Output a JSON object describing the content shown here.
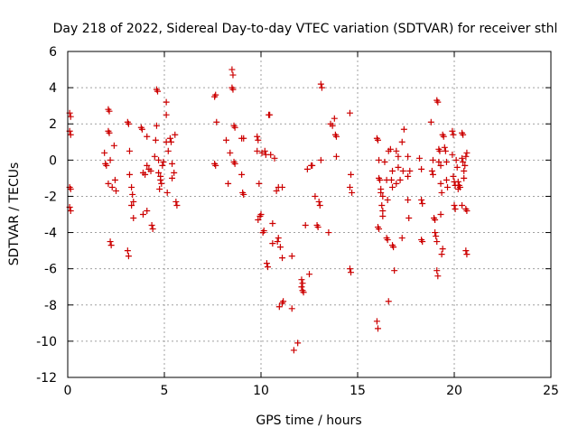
{
  "chart_data": {
    "type": "scatter",
    "title": "Day 218 of 2022, Sidereal Day-to-day VTEC variation (SDTVAR) for receiver sthl",
    "xlabel": "GPS time / hours",
    "ylabel": "SDTVAR / TECUs",
    "xlim": [
      0,
      25
    ],
    "ylim": [
      -12,
      6
    ],
    "x_ticks": [
      0,
      5,
      10,
      15,
      20,
      25
    ],
    "y_ticks": [
      -12,
      -10,
      -8,
      -6,
      -4,
      -2,
      0,
      2,
      4,
      6
    ],
    "x_tick_labels": [
      "0",
      "5",
      "10",
      "15",
      "20",
      "25"
    ],
    "y_tick_labels": [
      "-12",
      "-10",
      "-8",
      "-6",
      "-4",
      "-2",
      "0",
      "2",
      "4",
      "6"
    ],
    "grid": true,
    "marker": "+",
    "series": [
      {
        "name": "sthl",
        "color": "#cc0000",
        "points": [
          [
            0.1,
            2.6
          ],
          [
            0.15,
            2.4
          ],
          [
            0.1,
            1.6
          ],
          [
            0.15,
            1.4
          ],
          [
            0.1,
            -1.5
          ],
          [
            0.15,
            -1.6
          ],
          [
            0.1,
            -2.6
          ],
          [
            0.15,
            -2.8
          ],
          [
            1.9,
            0.4
          ],
          [
            1.95,
            -0.2
          ],
          [
            2.0,
            -0.3
          ],
          [
            2.1,
            2.8
          ],
          [
            2.15,
            2.7
          ],
          [
            2.1,
            1.6
          ],
          [
            2.15,
            1.5
          ],
          [
            2.2,
            0.0
          ],
          [
            2.1,
            -1.3
          ],
          [
            2.3,
            -1.5
          ],
          [
            2.2,
            -4.5
          ],
          [
            2.25,
            -4.7
          ],
          [
            2.4,
            0.8
          ],
          [
            2.45,
            -1.1
          ],
          [
            2.5,
            -1.7
          ],
          [
            3.1,
            2.1
          ],
          [
            3.15,
            2.0
          ],
          [
            3.2,
            0.5
          ],
          [
            3.2,
            -0.8
          ],
          [
            3.3,
            -1.5
          ],
          [
            3.35,
            -1.9
          ],
          [
            3.4,
            -2.3
          ],
          [
            3.3,
            -2.5
          ],
          [
            3.4,
            -3.2
          ],
          [
            3.1,
            -5.0
          ],
          [
            3.15,
            -5.3
          ],
          [
            3.8,
            1.8
          ],
          [
            3.85,
            1.7
          ],
          [
            3.9,
            -0.7
          ],
          [
            4.0,
            -0.8
          ],
          [
            4.1,
            1.3
          ],
          [
            4.1,
            -0.3
          ],
          [
            4.2,
            -0.5
          ],
          [
            4.1,
            -2.8
          ],
          [
            3.9,
            -3.0
          ],
          [
            4.3,
            -0.6
          ],
          [
            4.35,
            -3.6
          ],
          [
            4.4,
            -3.8
          ],
          [
            4.5,
            0.2
          ],
          [
            4.55,
            1.1
          ],
          [
            4.6,
            3.9
          ],
          [
            4.65,
            3.8
          ],
          [
            4.6,
            1.9
          ],
          [
            4.7,
            0.0
          ],
          [
            4.7,
            -0.7
          ],
          [
            4.8,
            -0.9
          ],
          [
            4.8,
            -1.1
          ],
          [
            4.85,
            -1.3
          ],
          [
            4.75,
            -1.6
          ],
          [
            4.9,
            -0.3
          ],
          [
            4.95,
            -0.1
          ],
          [
            5.1,
            3.2
          ],
          [
            5.1,
            2.5
          ],
          [
            5.1,
            1.0
          ],
          [
            5.15,
            -1.8
          ],
          [
            5.2,
            0.5
          ],
          [
            5.3,
            1.2
          ],
          [
            5.35,
            1.0
          ],
          [
            5.4,
            -0.2
          ],
          [
            5.4,
            -1.0
          ],
          [
            5.5,
            -0.7
          ],
          [
            5.55,
            1.4
          ],
          [
            5.6,
            -2.3
          ],
          [
            5.65,
            -2.5
          ],
          [
            7.6,
            3.5
          ],
          [
            7.65,
            3.6
          ],
          [
            7.7,
            2.1
          ],
          [
            7.6,
            -0.2
          ],
          [
            7.65,
            -0.3
          ],
          [
            8.2,
            1.1
          ],
          [
            8.3,
            -1.3
          ],
          [
            8.4,
            0.4
          ],
          [
            8.5,
            5.0
          ],
          [
            8.55,
            4.7
          ],
          [
            8.5,
            4.0
          ],
          [
            8.55,
            3.9
          ],
          [
            8.6,
            1.9
          ],
          [
            8.65,
            1.8
          ],
          [
            8.6,
            -0.1
          ],
          [
            8.65,
            -0.2
          ],
          [
            9.0,
            1.2
          ],
          [
            9.1,
            1.2
          ],
          [
            9.0,
            -0.8
          ],
          [
            9.05,
            -1.8
          ],
          [
            9.1,
            -1.9
          ],
          [
            9.8,
            1.3
          ],
          [
            9.85,
            1.1
          ],
          [
            9.8,
            0.5
          ],
          [
            9.9,
            -1.3
          ],
          [
            9.85,
            -3.3
          ],
          [
            9.95,
            -3.1
          ],
          [
            10.0,
            -3.0
          ],
          [
            10.05,
            0.4
          ],
          [
            10.1,
            -4.0
          ],
          [
            10.15,
            -3.9
          ],
          [
            10.2,
            0.5
          ],
          [
            10.25,
            0.3
          ],
          [
            10.4,
            2.5
          ],
          [
            10.45,
            2.5
          ],
          [
            10.3,
            -5.7
          ],
          [
            10.35,
            -5.9
          ],
          [
            10.5,
            0.3
          ],
          [
            10.6,
            -3.5
          ],
          [
            10.6,
            -4.6
          ],
          [
            10.7,
            0.1
          ],
          [
            10.8,
            -1.7
          ],
          [
            10.9,
            -1.5
          ],
          [
            10.85,
            -4.5
          ],
          [
            10.9,
            -4.3
          ],
          [
            10.95,
            -8.1
          ],
          [
            11.0,
            -4.8
          ],
          [
            11.1,
            -5.4
          ],
          [
            11.1,
            -7.9
          ],
          [
            11.15,
            -7.8
          ],
          [
            11.1,
            -1.5
          ],
          [
            11.6,
            -5.3
          ],
          [
            11.6,
            -8.2
          ],
          [
            11.7,
            -10.5
          ],
          [
            11.9,
            -10.1
          ],
          [
            12.1,
            -6.6
          ],
          [
            12.15,
            -6.8
          ],
          [
            12.1,
            -7.0
          ],
          [
            12.15,
            -7.2
          ],
          [
            12.2,
            -7.3
          ],
          [
            12.3,
            -3.6
          ],
          [
            12.4,
            -0.5
          ],
          [
            12.5,
            -6.3
          ],
          [
            12.6,
            -0.3
          ],
          [
            12.65,
            -0.3
          ],
          [
            12.8,
            -2.0
          ],
          [
            12.9,
            -3.6
          ],
          [
            12.95,
            -3.7
          ],
          [
            13.0,
            -2.3
          ],
          [
            13.05,
            -2.5
          ],
          [
            13.1,
            0.0
          ],
          [
            13.1,
            4.2
          ],
          [
            13.15,
            4.0
          ],
          [
            13.5,
            -4.0
          ],
          [
            13.6,
            2.0
          ],
          [
            13.7,
            1.9
          ],
          [
            13.8,
            2.3
          ],
          [
            13.85,
            1.4
          ],
          [
            13.9,
            1.3
          ],
          [
            13.9,
            0.2
          ],
          [
            14.6,
            2.6
          ],
          [
            14.65,
            -0.8
          ],
          [
            14.6,
            -1.5
          ],
          [
            14.7,
            -1.8
          ],
          [
            14.6,
            -6.0
          ],
          [
            14.65,
            -6.2
          ],
          [
            16.0,
            1.2
          ],
          [
            16.05,
            1.1
          ],
          [
            16.1,
            0.0
          ],
          [
            16.1,
            -1.0
          ],
          [
            16.15,
            -1.1
          ],
          [
            16.2,
            -1.6
          ],
          [
            16.2,
            -1.8
          ],
          [
            16.3,
            -2.0
          ],
          [
            16.25,
            -2.5
          ],
          [
            16.3,
            -2.8
          ],
          [
            16.3,
            -3.1
          ],
          [
            16.1,
            -3.8
          ],
          [
            16.05,
            -3.7
          ],
          [
            16.0,
            -8.9
          ],
          [
            16.05,
            -9.3
          ],
          [
            16.4,
            -0.1
          ],
          [
            16.5,
            -1.1
          ],
          [
            16.55,
            -2.2
          ],
          [
            16.6,
            0.5
          ],
          [
            16.5,
            -4.3
          ],
          [
            16.55,
            -4.4
          ],
          [
            16.6,
            -7.8
          ],
          [
            16.7,
            0.6
          ],
          [
            16.8,
            -0.6
          ],
          [
            16.75,
            -1.1
          ],
          [
            16.8,
            -1.5
          ],
          [
            16.8,
            -4.7
          ],
          [
            16.85,
            -4.8
          ],
          [
            16.9,
            -6.1
          ],
          [
            17.0,
            0.5
          ],
          [
            17.1,
            0.2
          ],
          [
            17.1,
            -0.4
          ],
          [
            17.0,
            -1.3
          ],
          [
            17.2,
            -1.1
          ],
          [
            17.3,
            1.0
          ],
          [
            17.35,
            -0.6
          ],
          [
            17.4,
            1.7
          ],
          [
            17.3,
            -4.3
          ],
          [
            17.6,
            0.2
          ],
          [
            17.6,
            -0.9
          ],
          [
            17.6,
            -2.2
          ],
          [
            17.65,
            -3.2
          ],
          [
            17.7,
            -0.6
          ],
          [
            18.2,
            0.1
          ],
          [
            18.3,
            -0.5
          ],
          [
            18.3,
            -2.2
          ],
          [
            18.35,
            -2.4
          ],
          [
            18.3,
            -4.4
          ],
          [
            18.35,
            -4.5
          ],
          [
            18.8,
            2.1
          ],
          [
            18.9,
            0.0
          ],
          [
            18.85,
            -0.6
          ],
          [
            18.9,
            -0.8
          ],
          [
            18.95,
            -3.2
          ],
          [
            19.0,
            -3.3
          ],
          [
            19.0,
            -4.0
          ],
          [
            19.05,
            -4.2
          ],
          [
            19.1,
            -4.5
          ],
          [
            19.1,
            -6.1
          ],
          [
            19.15,
            -6.4
          ],
          [
            19.1,
            3.3
          ],
          [
            19.15,
            3.2
          ],
          [
            19.2,
            0.6
          ],
          [
            19.25,
            0.5
          ],
          [
            19.2,
            -0.1
          ],
          [
            19.3,
            -0.3
          ],
          [
            19.3,
            -1.3
          ],
          [
            19.35,
            -1.8
          ],
          [
            19.3,
            -3.0
          ],
          [
            19.35,
            -5.2
          ],
          [
            19.4,
            -4.9
          ],
          [
            19.4,
            1.4
          ],
          [
            19.45,
            1.3
          ],
          [
            19.5,
            0.7
          ],
          [
            19.55,
            0.5
          ],
          [
            19.6,
            -0.1
          ],
          [
            19.6,
            -1.1
          ],
          [
            19.65,
            -1.5
          ],
          [
            19.9,
            1.6
          ],
          [
            19.95,
            1.4
          ],
          [
            19.9,
            0.3
          ],
          [
            19.95,
            -0.9
          ],
          [
            20.0,
            -1.2
          ],
          [
            20.05,
            -1.4
          ],
          [
            20.0,
            -2.5
          ],
          [
            20.05,
            -2.7
          ],
          [
            20.1,
            0.0
          ],
          [
            20.15,
            -0.4
          ],
          [
            20.2,
            -1.2
          ],
          [
            20.25,
            -1.4
          ],
          [
            20.2,
            -1.6
          ],
          [
            20.3,
            -1.5
          ],
          [
            20.4,
            1.5
          ],
          [
            20.45,
            1.4
          ],
          [
            20.4,
            0.1
          ],
          [
            20.45,
            -0.1
          ],
          [
            20.5,
            -0.6
          ],
          [
            20.5,
            -1.0
          ],
          [
            20.4,
            -2.5
          ],
          [
            20.55,
            -0.3
          ],
          [
            20.6,
            0.2
          ],
          [
            20.6,
            -2.7
          ],
          [
            20.65,
            -2.8
          ],
          [
            20.6,
            -5.0
          ],
          [
            20.65,
            -5.2
          ],
          [
            20.65,
            0.4
          ]
        ]
      }
    ]
  }
}
